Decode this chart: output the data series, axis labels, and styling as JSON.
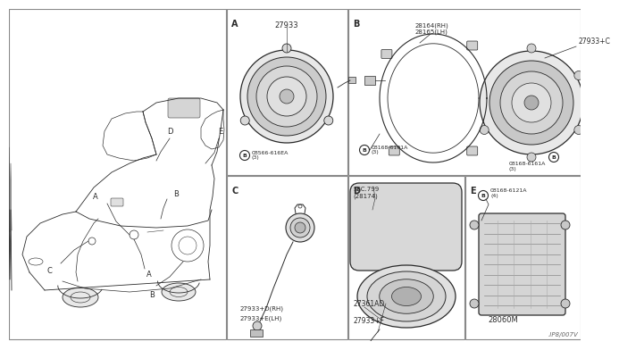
{
  "bg": "#ffffff",
  "line": "#2a2a2a",
  "panel_bg": "#ffffff",
  "gray_bg": "#f5f5f5",
  "page_ref": ".IP8/007V",
  "panels": {
    "car": [
      0,
      0,
      243,
      370
    ],
    "A": [
      244,
      0,
      135,
      186
    ],
    "B": [
      380,
      0,
      260,
      186
    ],
    "C": [
      244,
      187,
      135,
      183
    ],
    "D": [
      380,
      187,
      130,
      183
    ],
    "E": [
      511,
      187,
      129,
      183
    ]
  },
  "A_label": "27933",
  "A_bolt_label": "08566-616EA\n(3)",
  "B_top_label": "28164(RH)\n28165(LH)",
  "B_part_label": "27933+C",
  "B_bolt1_label": "08168-6161A\n(3)",
  "B_bolt2_label": "08168-6161A\n(3)",
  "C_label1": "27933+D(RH)",
  "C_label2": "27933+E(LH)",
  "D_sec_label": "SEC.799\n(28174)",
  "D_part1_label": "27361AD",
  "D_part2_label": "27933+F",
  "E_bolt_label": "08168-6121A\n(4)",
  "E_part_label": "28060M"
}
